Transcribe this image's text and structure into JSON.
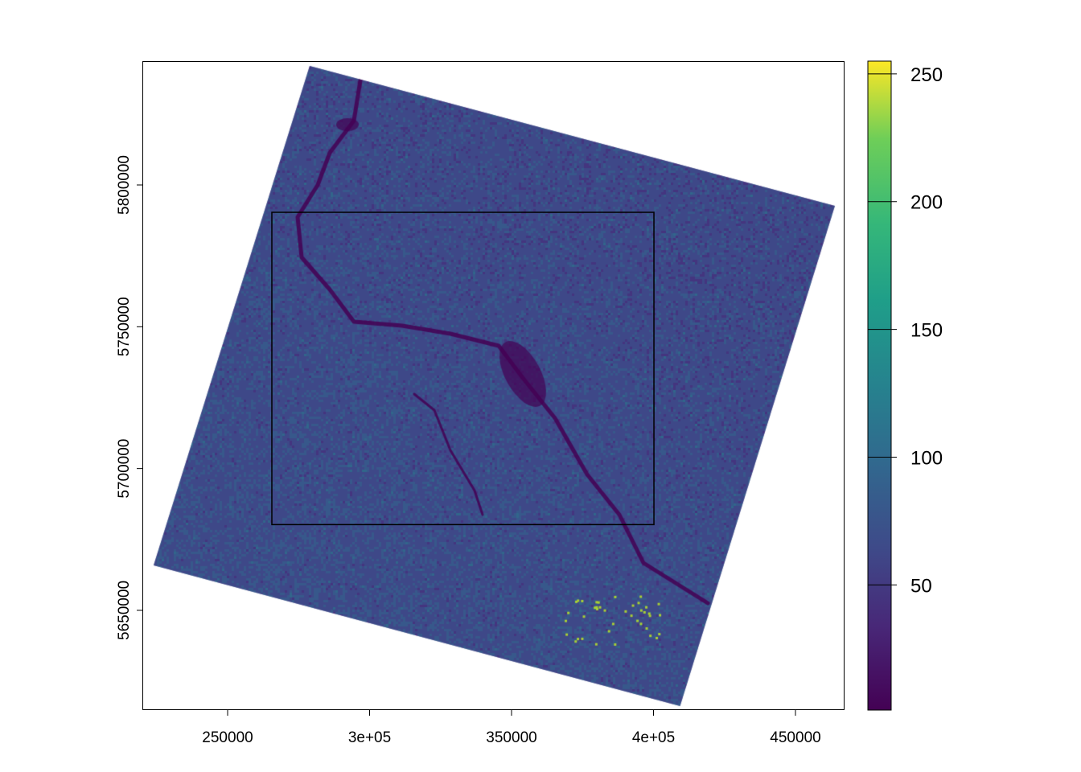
{
  "chart_data": {
    "type": "raster",
    "xlim": [
      219970,
      467280
    ],
    "ylim": [
      5614830,
      5843670
    ],
    "x_ticks": [
      {
        "value": 250000,
        "label": "250000"
      },
      {
        "value": 300000,
        "label": "3e+05"
      },
      {
        "value": 350000,
        "label": "350000"
      },
      {
        "value": 400000,
        "label": "4e+05"
      },
      {
        "value": 450000,
        "label": "450000"
      }
    ],
    "y_ticks": [
      {
        "value": 5650000,
        "label": "5650000"
      },
      {
        "value": 5700000,
        "label": "5700000"
      },
      {
        "value": 5750000,
        "label": "5750000"
      },
      {
        "value": 5800000,
        "label": "5800000"
      }
    ],
    "raster_footprint": [
      [
        278900,
        5841970
      ],
      [
        463880,
        5792630
      ],
      [
        409350,
        5616250
      ],
      [
        223940,
        5665880
      ]
    ],
    "extent_rectangle": {
      "xmin": 265580,
      "xmax": 400150,
      "ymin": 5680230,
      "ymax": 5790360
    },
    "colorbar": {
      "palette": "viridis",
      "range": [
        1,
        255
      ],
      "ticks": [
        {
          "value": 50,
          "label": "50"
        },
        {
          "value": 100,
          "label": "100"
        },
        {
          "value": 150,
          "label": "150"
        },
        {
          "value": 200,
          "label": "200"
        },
        {
          "value": 250,
          "label": "250"
        }
      ]
    },
    "grid": false,
    "legend_placement": "right"
  }
}
